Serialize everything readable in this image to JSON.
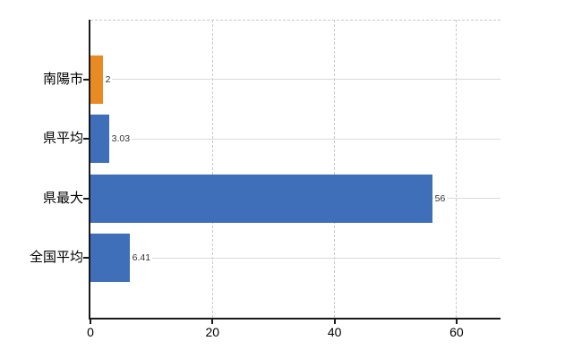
{
  "chart_data": {
    "type": "bar",
    "orientation": "horizontal",
    "title": "",
    "xlabel": "",
    "ylabel": "",
    "categories": [
      "南陽市",
      "県平均",
      "県最大",
      "全国平均"
    ],
    "values": [
      2,
      3.03,
      56,
      6.41
    ],
    "value_labels": [
      "2",
      "3.03",
      "56",
      "6.41"
    ],
    "bar_colors": [
      "#ea8a22",
      "#3e6fb8",
      "#3e6fb8",
      "#3e6fb8"
    ],
    "x_ticks": [
      0,
      20,
      40,
      60
    ],
    "xlim": [
      0,
      67.2
    ],
    "legend": "none",
    "grid": {
      "vertical": "dashed",
      "top_border": "dashed",
      "row_lines": "solid"
    },
    "colors": {
      "accent_orange": "#ea8a22",
      "accent_blue": "#3e6fb8",
      "axis": "#1a1a1a",
      "grid_dashed": "#c9c9c9",
      "grid_solid": "#d9d9d9",
      "value_text": "#333333",
      "label_text": "#000000",
      "background": "#ffffff"
    }
  }
}
